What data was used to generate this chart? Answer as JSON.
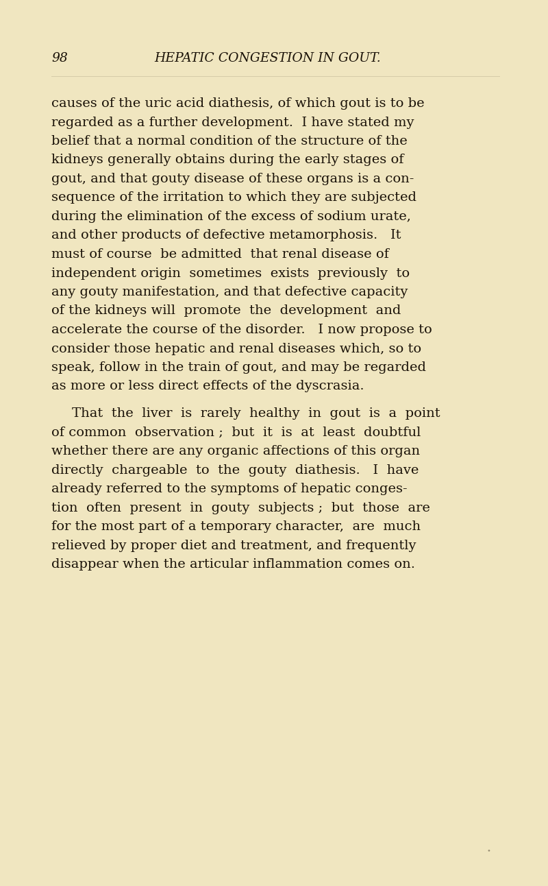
{
  "background_color": "#f0e6c0",
  "page_number": "98",
  "header_title": "HEPATIC CONGESTION IN GOUT.",
  "text_color": "#1a1208",
  "body_fontsize": 14.0,
  "header_fontsize": 13.5,
  "paragraph1_lines": [
    "causes of the uric acid diathesis, of which gout is to be",
    "regarded as a further development.  I have stated my",
    "belief that a normal condition of the structure of the",
    "kidneys generally obtains during the early stages of",
    "gout, and that gouty disease of these organs is a con-",
    "sequence of the irritation to which they are subjected",
    "during the elimination of the excess of sodium urate,",
    "and other products of defective metamorphosis.   It",
    "must of course  be admitted  that renal disease of",
    "independent origin  sometimes  exists  previously  to",
    "any gouty manifestation, and that defective capacity",
    "of the kidneys will  promote  the  development  and",
    "accelerate the course of the disorder.   I now propose to",
    "consider those hepatic and renal diseases which, so to",
    "speak, follow in the train of gout, and may be regarded",
    "as more or less direct effects of the dyscrasia."
  ],
  "paragraph2_lines": [
    "That  the  liver  is  rarely  healthy  in  gout  is  a  point",
    "of common  observation ;  but  it  is  at  least  doubtful",
    "whether there are any organic affections of this organ",
    "directly  chargeable  to  the  gouty  diathesis.   I  have",
    "already referred to the symptoms of hepatic conges-",
    "tion  often  present  in  gouty  subjects ;  but  those  are",
    "for the most part of a temporary character,  are  much",
    "relieved by proper diet and treatment, and frequently",
    "disappear when the articular inflammation comes on."
  ]
}
